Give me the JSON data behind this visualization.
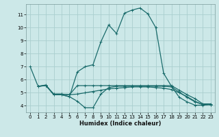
{
  "xlabel": "Humidex (Indice chaleur)",
  "background_color": "#cce8e8",
  "grid_color": "#aacece",
  "line_color": "#1a6b6b",
  "xlim": [
    -0.5,
    23.5
  ],
  "ylim": [
    3.5,
    11.8
  ],
  "xticks": [
    0,
    1,
    2,
    3,
    4,
    5,
    6,
    7,
    8,
    9,
    10,
    11,
    12,
    13,
    14,
    15,
    16,
    17,
    18,
    19,
    20,
    21,
    22,
    23
  ],
  "yticks": [
    4,
    5,
    6,
    7,
    8,
    9,
    10,
    11
  ],
  "line1_x": [
    0,
    1,
    2,
    3,
    4,
    5,
    6,
    7,
    8,
    9,
    10,
    11,
    12,
    13,
    14,
    15,
    16,
    17,
    18,
    19,
    20,
    21,
    22,
    23
  ],
  "line1_y": [
    7.0,
    5.5,
    5.6,
    4.85,
    4.85,
    4.7,
    6.6,
    7.0,
    7.15,
    8.9,
    10.2,
    9.55,
    11.1,
    11.35,
    11.5,
    11.05,
    10.0,
    6.5,
    5.5,
    4.65,
    4.3,
    4.05,
    4.05,
    4.1
  ],
  "line2_x": [
    1,
    2,
    3,
    4,
    5,
    6,
    7,
    8,
    9,
    10,
    11,
    12,
    13,
    14,
    15,
    16,
    17,
    18,
    19,
    20,
    21,
    22,
    23
  ],
  "line2_y": [
    5.5,
    5.55,
    4.9,
    4.9,
    4.85,
    5.55,
    5.55,
    5.55,
    5.55,
    5.55,
    5.55,
    5.55,
    5.55,
    5.55,
    5.55,
    5.55,
    5.55,
    5.55,
    5.2,
    4.85,
    4.55,
    4.15,
    4.15
  ],
  "line3_x": [
    1,
    2,
    3,
    4,
    5,
    6,
    7,
    8,
    9,
    10,
    11,
    12,
    13,
    14,
    15,
    16,
    17,
    18,
    19,
    20,
    21,
    22,
    23
  ],
  "line3_y": [
    5.5,
    5.55,
    4.85,
    4.85,
    4.7,
    4.35,
    3.85,
    3.85,
    4.9,
    5.4,
    5.5,
    5.5,
    5.5,
    5.5,
    5.5,
    5.5,
    5.5,
    5.45,
    5.05,
    4.65,
    4.3,
    4.1,
    4.1
  ],
  "line4_x": [
    1,
    2,
    3,
    4,
    5,
    6,
    7,
    8,
    9,
    10,
    11,
    12,
    13,
    14,
    15,
    16,
    17,
    18,
    19,
    20,
    21,
    22,
    23
  ],
  "line4_y": [
    5.5,
    5.55,
    4.9,
    4.9,
    4.85,
    4.9,
    5.0,
    5.1,
    5.2,
    5.3,
    5.35,
    5.4,
    5.45,
    5.45,
    5.45,
    5.4,
    5.35,
    5.25,
    5.0,
    4.7,
    4.35,
    4.1,
    4.1
  ]
}
